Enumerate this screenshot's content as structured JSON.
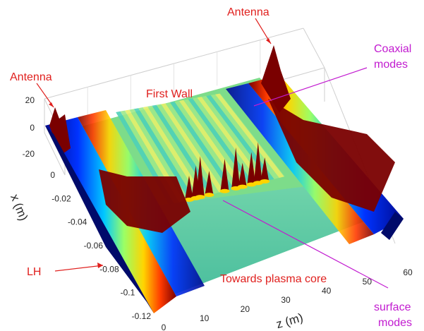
{
  "chart_data": {
    "type": "surface3d",
    "title": "",
    "xlabel": "x (m)",
    "zlabel_axis": "z (m)",
    "vertical_ticks": [
      "20",
      "0",
      "-20"
    ],
    "x_ticks": [
      "0",
      "-0.02",
      "-0.04",
      "-0.06",
      "-0.08",
      "-0.1",
      "-0.12"
    ],
    "z_ticks": [
      "0",
      "10",
      "20",
      "30",
      "40",
      "50",
      "60"
    ],
    "x_range": [
      -0.12,
      0
    ],
    "z_range": [
      0,
      60
    ],
    "vertical_range": [
      -20,
      20
    ],
    "grid": true,
    "colormap": "jet",
    "surface": {
      "outer_stripe_z": [
        0,
        60
      ],
      "inner_stripe_z": [
        4,
        56
      ],
      "center_wave_period_z": 4.5,
      "sharp_peaks_z": [
        13,
        16,
        18,
        22,
        29,
        34,
        37,
        41,
        44,
        47
      ]
    },
    "annotations": [
      {
        "text": "Antenna",
        "color": "#e0201e"
      },
      {
        "text": "Antenna",
        "color": "#e0201e"
      },
      {
        "text": "Coaxial",
        "color": "#c21bd0"
      },
      {
        "text": "modes",
        "color": "#c21bd0"
      },
      {
        "text": "First Wall",
        "color": "#e0201e"
      },
      {
        "text": "LH",
        "color": "#e0201e"
      },
      {
        "text": "Towards plasma core",
        "color": "#e0201e"
      },
      {
        "text": "surface",
        "color": "#c21bd0"
      },
      {
        "text": "modes",
        "color": "#c21bd0"
      }
    ]
  }
}
